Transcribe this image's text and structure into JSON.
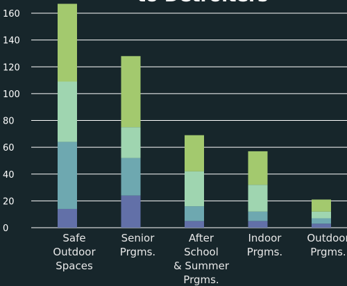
{
  "chart_data": {
    "type": "stacked_bar",
    "title": "to Detroiters",
    "categories": [
      "Safe\nOutdoor\nSpaces",
      "Senior\nPrgms.",
      "After\nSchool\n& Summer\nPrgms.",
      "Indoor\nPrgms.",
      "Outdoor\nPrgms."
    ],
    "series": [
      {
        "color": "#6270a8",
        "values": [
          14,
          24,
          5,
          5,
          3
        ]
      },
      {
        "color": "#6ea8b0",
        "values": [
          50,
          28,
          11,
          7,
          4
        ]
      },
      {
        "color": "#9fd5b0",
        "values": [
          45,
          23,
          26,
          20,
          5
        ]
      },
      {
        "color": "#a3c96e",
        "values": [
          58,
          53,
          27,
          25,
          9
        ]
      }
    ],
    "ylim": [
      0,
      160
    ],
    "yticks": [
      0,
      20,
      40,
      60,
      80,
      100,
      120,
      140,
      160
    ],
    "grid": true
  }
}
